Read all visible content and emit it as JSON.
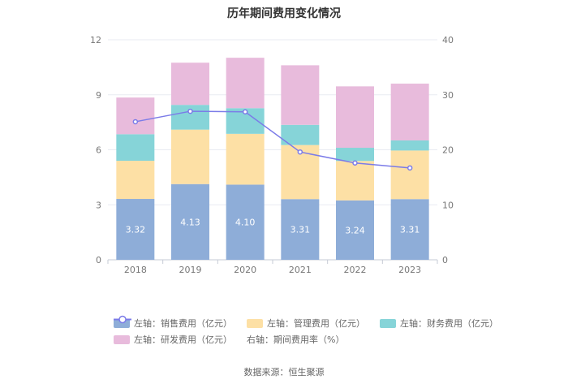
{
  "chart_data": {
    "type": "bar",
    "title": "历年期间费用变化情况",
    "categories": [
      "2018",
      "2019",
      "2020",
      "2021",
      "2022",
      "2023"
    ],
    "left_axis": {
      "ylim": [
        0,
        12
      ],
      "ticks": [
        "0",
        "3",
        "6",
        "9",
        "12"
      ]
    },
    "right_axis": {
      "ylim": [
        0,
        40
      ],
      "ticks": [
        "0",
        "10",
        "20",
        "30",
        "40"
      ]
    },
    "series": [
      {
        "name": "左轴：销售费用（亿元）",
        "axis": "left",
        "stack": "cost",
        "color": "#8eadd8",
        "values": [
          3.32,
          4.13,
          4.1,
          3.31,
          3.24,
          3.31
        ],
        "labels": [
          "3.32",
          "4.13",
          "4.10",
          "3.31",
          "3.24",
          "3.31"
        ]
      },
      {
        "name": "左轴：管理费用（亿元）",
        "axis": "left",
        "stack": "cost",
        "color": "#fde0a5",
        "values": [
          2.08,
          2.97,
          2.77,
          2.95,
          2.15,
          2.65
        ]
      },
      {
        "name": "左轴：财务费用（亿元）",
        "axis": "left",
        "stack": "cost",
        "color": "#86d4d8",
        "values": [
          1.45,
          1.35,
          1.4,
          1.1,
          0.72,
          0.55
        ]
      },
      {
        "name": "左轴：研发费用（亿元）",
        "axis": "left",
        "stack": "cost",
        "color": "#e8bbdc",
        "values": [
          2.0,
          2.3,
          2.75,
          3.25,
          3.35,
          3.1
        ]
      },
      {
        "name": "右轴：期间费用率（%）",
        "axis": "right",
        "type": "line",
        "color": "#7b7be8",
        "values": [
          25.1,
          27.0,
          26.9,
          19.6,
          17.6,
          16.7
        ]
      }
    ]
  },
  "footer": {
    "source": "数据来源：恒生聚源"
  }
}
